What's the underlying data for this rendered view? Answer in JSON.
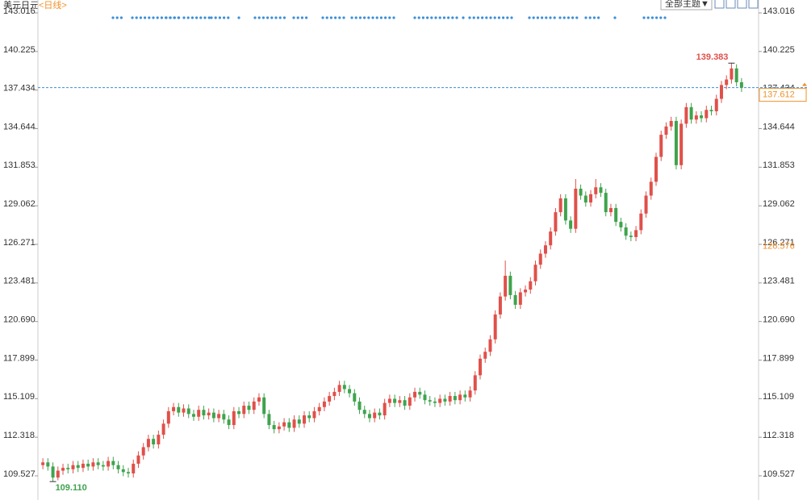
{
  "toolbar": {
    "theme_button": "全部主题▼"
  },
  "chart_data": {
    "type": "candlestick",
    "title": "美元日元",
    "subtitle": "<日线>",
    "up_color": "#e0504a",
    "down_color": "#3fa34d",
    "ylim": [
      107.777,
      143.95
    ],
    "yticks": [
      143.016,
      140.225,
      137.434,
      134.644,
      131.853,
      129.062,
      126.271,
      123.481,
      {
        "value": 120.69,
        "label": "120.690"
      },
      117.899,
      115.109,
      112.318,
      109.527
    ],
    "open": [
      110.3,
      110.5,
      110.2,
      109.4,
      109.9,
      110.1,
      110.0,
      110.3,
      110.1,
      110.4,
      110.2,
      110.5,
      110.3,
      110.2,
      110.6,
      110.3,
      110.0,
      109.8,
      109.7,
      110.4,
      111.0,
      111.6,
      112.2,
      111.8,
      112.5,
      113.3,
      114.2,
      114.5,
      114.1,
      114.4,
      114.0,
      113.8,
      114.3,
      113.9,
      114.1,
      113.7,
      114.0,
      113.6,
      113.2,
      114.2,
      114.0,
      114.6,
      114.3,
      114.9,
      115.2,
      114.0,
      113.2,
      112.9,
      113.1,
      113.4,
      113.0,
      113.6,
      113.3,
      113.9,
      113.7,
      114.2,
      114.5,
      114.9,
      115.3,
      115.6,
      116.1,
      115.8,
      115.5,
      114.9,
      114.3,
      114.0,
      113.7,
      114.1,
      113.9,
      114.8,
      115.1,
      114.8,
      115.0,
      114.6,
      115.2,
      115.6,
      115.4,
      115.0,
      114.9,
      114.8,
      115.1,
      114.9,
      115.3,
      115.0,
      115.4,
      115.2,
      115.7,
      116.8,
      118.0,
      118.5,
      119.4,
      121.2,
      122.5,
      124.0,
      122.6,
      121.9,
      122.8,
      123.0,
      123.6,
      124.8,
      125.6,
      126.2,
      127.2,
      128.6,
      129.6,
      128.0,
      127.4,
      130.3,
      129.8,
      129.3,
      129.9,
      130.4,
      130.0,
      128.6,
      128.9,
      127.9,
      127.5,
      126.9,
      126.8,
      127.3,
      128.5,
      129.8,
      130.8,
      132.6,
      134.2,
      134.8,
      135.2,
      132.0,
      135.0,
      136.2,
      135.3,
      135.6,
      135.4,
      136.0,
      135.9,
      136.8,
      137.8,
      138.2,
      139.0,
      138.0
    ],
    "high": [
      110.8,
      110.8,
      110.5,
      110.2,
      110.4,
      110.4,
      110.6,
      110.6,
      110.7,
      110.7,
      110.8,
      110.8,
      110.6,
      110.9,
      110.9,
      110.6,
      110.3,
      110.1,
      110.7,
      111.3,
      111.9,
      112.5,
      112.5,
      112.8,
      113.6,
      114.5,
      114.8,
      114.8,
      114.7,
      114.7,
      114.3,
      114.6,
      114.6,
      114.4,
      114.4,
      114.3,
      114.3,
      113.9,
      114.5,
      114.5,
      114.9,
      114.9,
      115.2,
      115.5,
      115.5,
      114.3,
      113.5,
      113.4,
      113.7,
      113.7,
      113.9,
      113.9,
      114.2,
      114.2,
      114.5,
      114.8,
      115.2,
      115.6,
      115.9,
      116.4,
      116.4,
      116.1,
      115.8,
      115.2,
      114.6,
      114.3,
      114.4,
      114.4,
      115.1,
      115.4,
      115.4,
      115.3,
      115.3,
      115.5,
      115.9,
      115.9,
      115.7,
      115.3,
      115.2,
      115.4,
      115.4,
      115.6,
      115.6,
      115.7,
      115.7,
      116.0,
      117.1,
      118.3,
      118.8,
      119.7,
      121.5,
      122.8,
      125.1,
      124.3,
      122.9,
      123.1,
      123.3,
      123.9,
      125.1,
      125.9,
      126.5,
      127.5,
      128.9,
      129.9,
      129.9,
      128.3,
      131.0,
      130.6,
      130.1,
      130.2,
      131.0,
      130.7,
      130.3,
      129.2,
      129.2,
      128.2,
      127.8,
      127.2,
      127.6,
      128.8,
      130.1,
      131.1,
      132.9,
      134.5,
      135.1,
      135.5,
      135.5,
      135.3,
      136.5,
      136.5,
      135.9,
      135.9,
      136.3,
      136.3,
      137.1,
      138.1,
      138.5,
      139.383,
      139.3,
      138.3
    ],
    "low": [
      110.0,
      109.9,
      109.11,
      109.2,
      109.6,
      109.7,
      109.7,
      109.8,
      109.8,
      109.9,
      109.9,
      110.0,
      109.9,
      109.9,
      110.0,
      109.7,
      109.5,
      109.4,
      109.4,
      110.1,
      110.7,
      111.3,
      111.5,
      111.5,
      112.2,
      113.0,
      113.9,
      113.8,
      113.8,
      113.7,
      113.5,
      113.5,
      113.6,
      113.6,
      113.4,
      113.4,
      113.3,
      112.9,
      112.9,
      113.7,
      113.7,
      114.0,
      114.0,
      114.6,
      113.7,
      112.9,
      112.6,
      112.6,
      112.8,
      112.7,
      112.7,
      113.0,
      113.0,
      113.4,
      113.4,
      113.9,
      114.2,
      114.6,
      115.0,
      115.3,
      115.5,
      115.2,
      114.6,
      114.0,
      113.7,
      113.4,
      113.4,
      113.6,
      113.6,
      114.5,
      114.5,
      114.5,
      114.3,
      114.3,
      114.9,
      115.1,
      114.7,
      114.6,
      114.5,
      114.5,
      114.6,
      114.6,
      114.7,
      114.7,
      114.9,
      114.9,
      115.4,
      116.5,
      117.7,
      118.2,
      119.1,
      120.9,
      122.2,
      122.3,
      121.6,
      121.6,
      122.5,
      122.7,
      123.3,
      124.5,
      125.3,
      125.9,
      126.9,
      128.3,
      127.7,
      127.1,
      127.1,
      129.5,
      129.0,
      129.0,
      129.6,
      129.7,
      128.3,
      128.3,
      127.6,
      127.2,
      126.6,
      126.5,
      126.5,
      127.0,
      128.2,
      129.5,
      130.5,
      132.3,
      133.9,
      134.5,
      131.7,
      131.7,
      134.7,
      135.0,
      135.0,
      135.1,
      135.1,
      135.6,
      135.6,
      136.5,
      137.5,
      137.9,
      137.7,
      137.3
    ],
    "close": [
      110.5,
      110.2,
      109.4,
      109.9,
      110.1,
      110.0,
      110.3,
      110.1,
      110.4,
      110.2,
      110.5,
      110.3,
      110.2,
      110.6,
      110.3,
      110.0,
      109.8,
      109.7,
      110.4,
      111.0,
      111.6,
      112.2,
      111.8,
      112.5,
      113.3,
      114.2,
      114.5,
      114.1,
      114.4,
      114.0,
      113.8,
      114.3,
      113.9,
      114.1,
      113.7,
      114.0,
      113.6,
      113.2,
      114.2,
      114.0,
      114.6,
      114.3,
      114.9,
      115.2,
      114.0,
      113.2,
      112.9,
      113.1,
      113.4,
      113.0,
      113.6,
      113.3,
      113.9,
      113.7,
      114.2,
      114.5,
      114.9,
      115.3,
      115.6,
      116.1,
      115.8,
      115.5,
      114.9,
      114.3,
      114.0,
      113.7,
      114.1,
      113.9,
      114.8,
      115.1,
      114.8,
      115.0,
      114.6,
      115.2,
      115.6,
      115.4,
      115.0,
      114.9,
      114.8,
      115.1,
      114.9,
      115.3,
      115.0,
      115.4,
      115.2,
      115.7,
      116.8,
      118.0,
      118.5,
      119.4,
      121.2,
      122.5,
      124.0,
      122.6,
      121.9,
      122.8,
      123.0,
      123.6,
      124.8,
      125.6,
      126.2,
      127.2,
      128.6,
      129.6,
      128.0,
      127.4,
      130.3,
      129.8,
      129.3,
      129.9,
      130.4,
      130.0,
      128.6,
      128.9,
      127.9,
      127.5,
      126.9,
      126.8,
      127.3,
      128.5,
      129.8,
      130.8,
      132.6,
      134.2,
      134.8,
      135.2,
      132.0,
      135.0,
      136.2,
      135.3,
      135.6,
      135.4,
      136.0,
      135.9,
      136.8,
      137.8,
      138.2,
      139.0,
      138.0,
      137.612
    ],
    "high_label": {
      "value": 139.383,
      "color": "#e0504a"
    },
    "low_label": {
      "value": 109.11,
      "label": "109.110",
      "color": "#3fa34d"
    },
    "current_price": {
      "value": 137.612,
      "color": "#f0912a"
    },
    "reference_price": {
      "value": 126.576,
      "color": "#f0912a"
    }
  }
}
